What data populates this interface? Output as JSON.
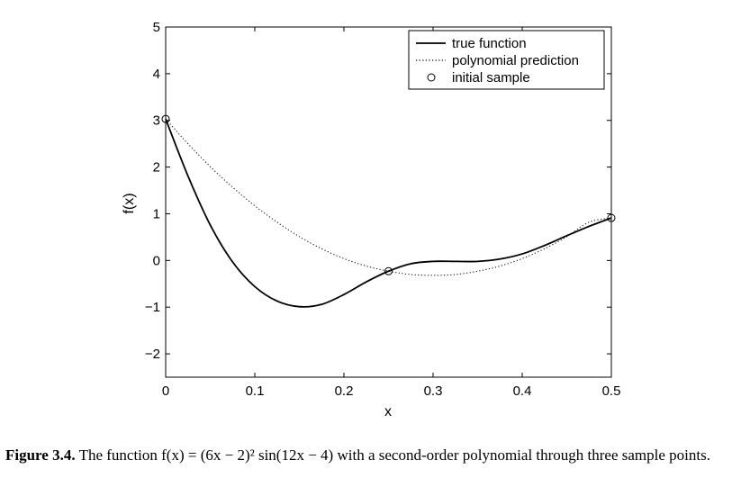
{
  "chart_data": {
    "type": "line",
    "xlabel": "x",
    "ylabel": "f(x)",
    "xlim": [
      0,
      0.5
    ],
    "ylim": [
      -2.5,
      5
    ],
    "xticks": [
      0,
      0.1,
      0.2,
      0.3,
      0.4,
      0.5
    ],
    "xtick_labels": [
      "0",
      "0.1",
      "0.2",
      "0.3",
      "0.4",
      "0.5"
    ],
    "yticks": [
      -2,
      -1,
      0,
      1,
      2,
      3,
      4,
      5
    ],
    "ytick_labels": [
      "−2",
      "−1",
      "0",
      "1",
      "2",
      "3",
      "4",
      "5"
    ],
    "grid": false,
    "legend_position": "top-right",
    "series": [
      {
        "name": "true function",
        "style": "solid",
        "x": [
          0,
          0.025,
          0.05,
          0.075,
          0.1,
          0.125,
          0.15,
          0.175,
          0.2,
          0.225,
          0.25,
          0.275,
          0.3,
          0.325,
          0.35,
          0.375,
          0.4,
          0.425,
          0.45,
          0.475,
          0.5
        ],
        "y": [
          3.03,
          1.81,
          0.76,
          -0.03,
          -0.56,
          -0.87,
          -0.99,
          -0.94,
          -0.73,
          -0.46,
          -0.23,
          -0.07,
          -0.02,
          -0.02,
          -0.02,
          0.03,
          0.14,
          0.32,
          0.53,
          0.73,
          0.91
        ]
      },
      {
        "name": "polynomial prediction",
        "style": "dotted",
        "x": [
          0,
          0.025,
          0.05,
          0.075,
          0.1,
          0.125,
          0.15,
          0.175,
          0.2,
          0.225,
          0.25,
          0.275,
          0.3,
          0.325,
          0.35,
          0.375,
          0.4,
          0.425,
          0.45,
          0.475,
          0.5
        ],
        "y": [
          3.03,
          2.5,
          2.01,
          1.57,
          1.17,
          0.82,
          0.51,
          0.25,
          0.04,
          -0.12,
          -0.23,
          -0.3,
          -0.32,
          -0.3,
          -0.23,
          -0.12,
          0.04,
          0.25,
          0.51,
          0.82,
          0.91
        ]
      },
      {
        "name": "initial sample",
        "style": "markers",
        "marker": "circle",
        "x": [
          0,
          0.25,
          0.5
        ],
        "y": [
          3.03,
          -0.23,
          0.91
        ]
      }
    ]
  },
  "caption": {
    "label": "Figure 3.4.",
    "text": "The function f(x) = (6x − 2)² sin(12x − 4) with a second-order polynomial through three sample points."
  }
}
